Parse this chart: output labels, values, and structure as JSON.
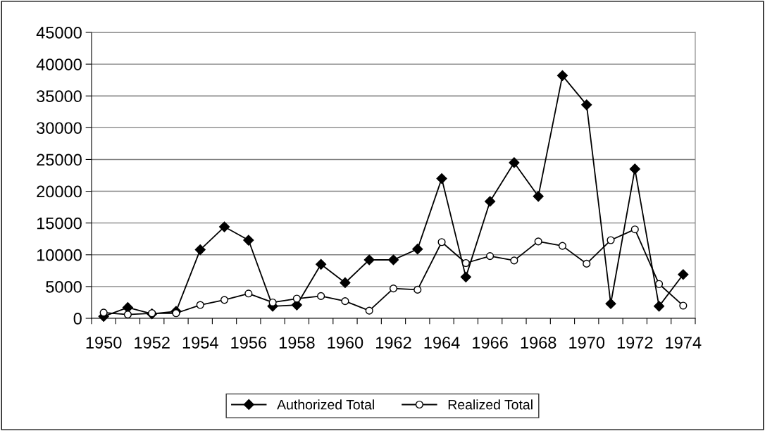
{
  "chart_data": {
    "type": "line",
    "categories": [
      "1950",
      null,
      "1952",
      null,
      "1954",
      null,
      "1956",
      null,
      "1958",
      null,
      "1960",
      null,
      "1962",
      null,
      "1964",
      null,
      "1966",
      null,
      "1968",
      null,
      "1970",
      null,
      "1972",
      null,
      "1974"
    ],
    "series": [
      {
        "name": "Authorized Total",
        "color": "#000000",
        "marker": "diamond",
        "values": [
          300,
          1700,
          700,
          1100,
          10800,
          14400,
          12300,
          1900,
          2100,
          8500,
          5600,
          9200,
          9200,
          10900,
          22000,
          6500,
          18400,
          24500,
          19200,
          38200,
          33600,
          2300,
          23500,
          1900,
          6900
        ]
      },
      {
        "name": "Realized Total",
        "color": "#000000",
        "marker": "circle",
        "values": [
          900,
          600,
          800,
          800,
          2100,
          2900,
          3900,
          2500,
          3100,
          3500,
          2700,
          1200,
          4700,
          4500,
          12000,
          8700,
          9800,
          9100,
          12100,
          11400,
          8600,
          12300,
          14000,
          5400,
          2000
        ]
      }
    ],
    "ylim": [
      0,
      45000
    ],
    "yticks": [
      0,
      5000,
      10000,
      15000,
      20000,
      25000,
      30000,
      35000,
      40000,
      45000
    ],
    "grid": "y",
    "legend": "bottom",
    "line_style": "solid"
  }
}
